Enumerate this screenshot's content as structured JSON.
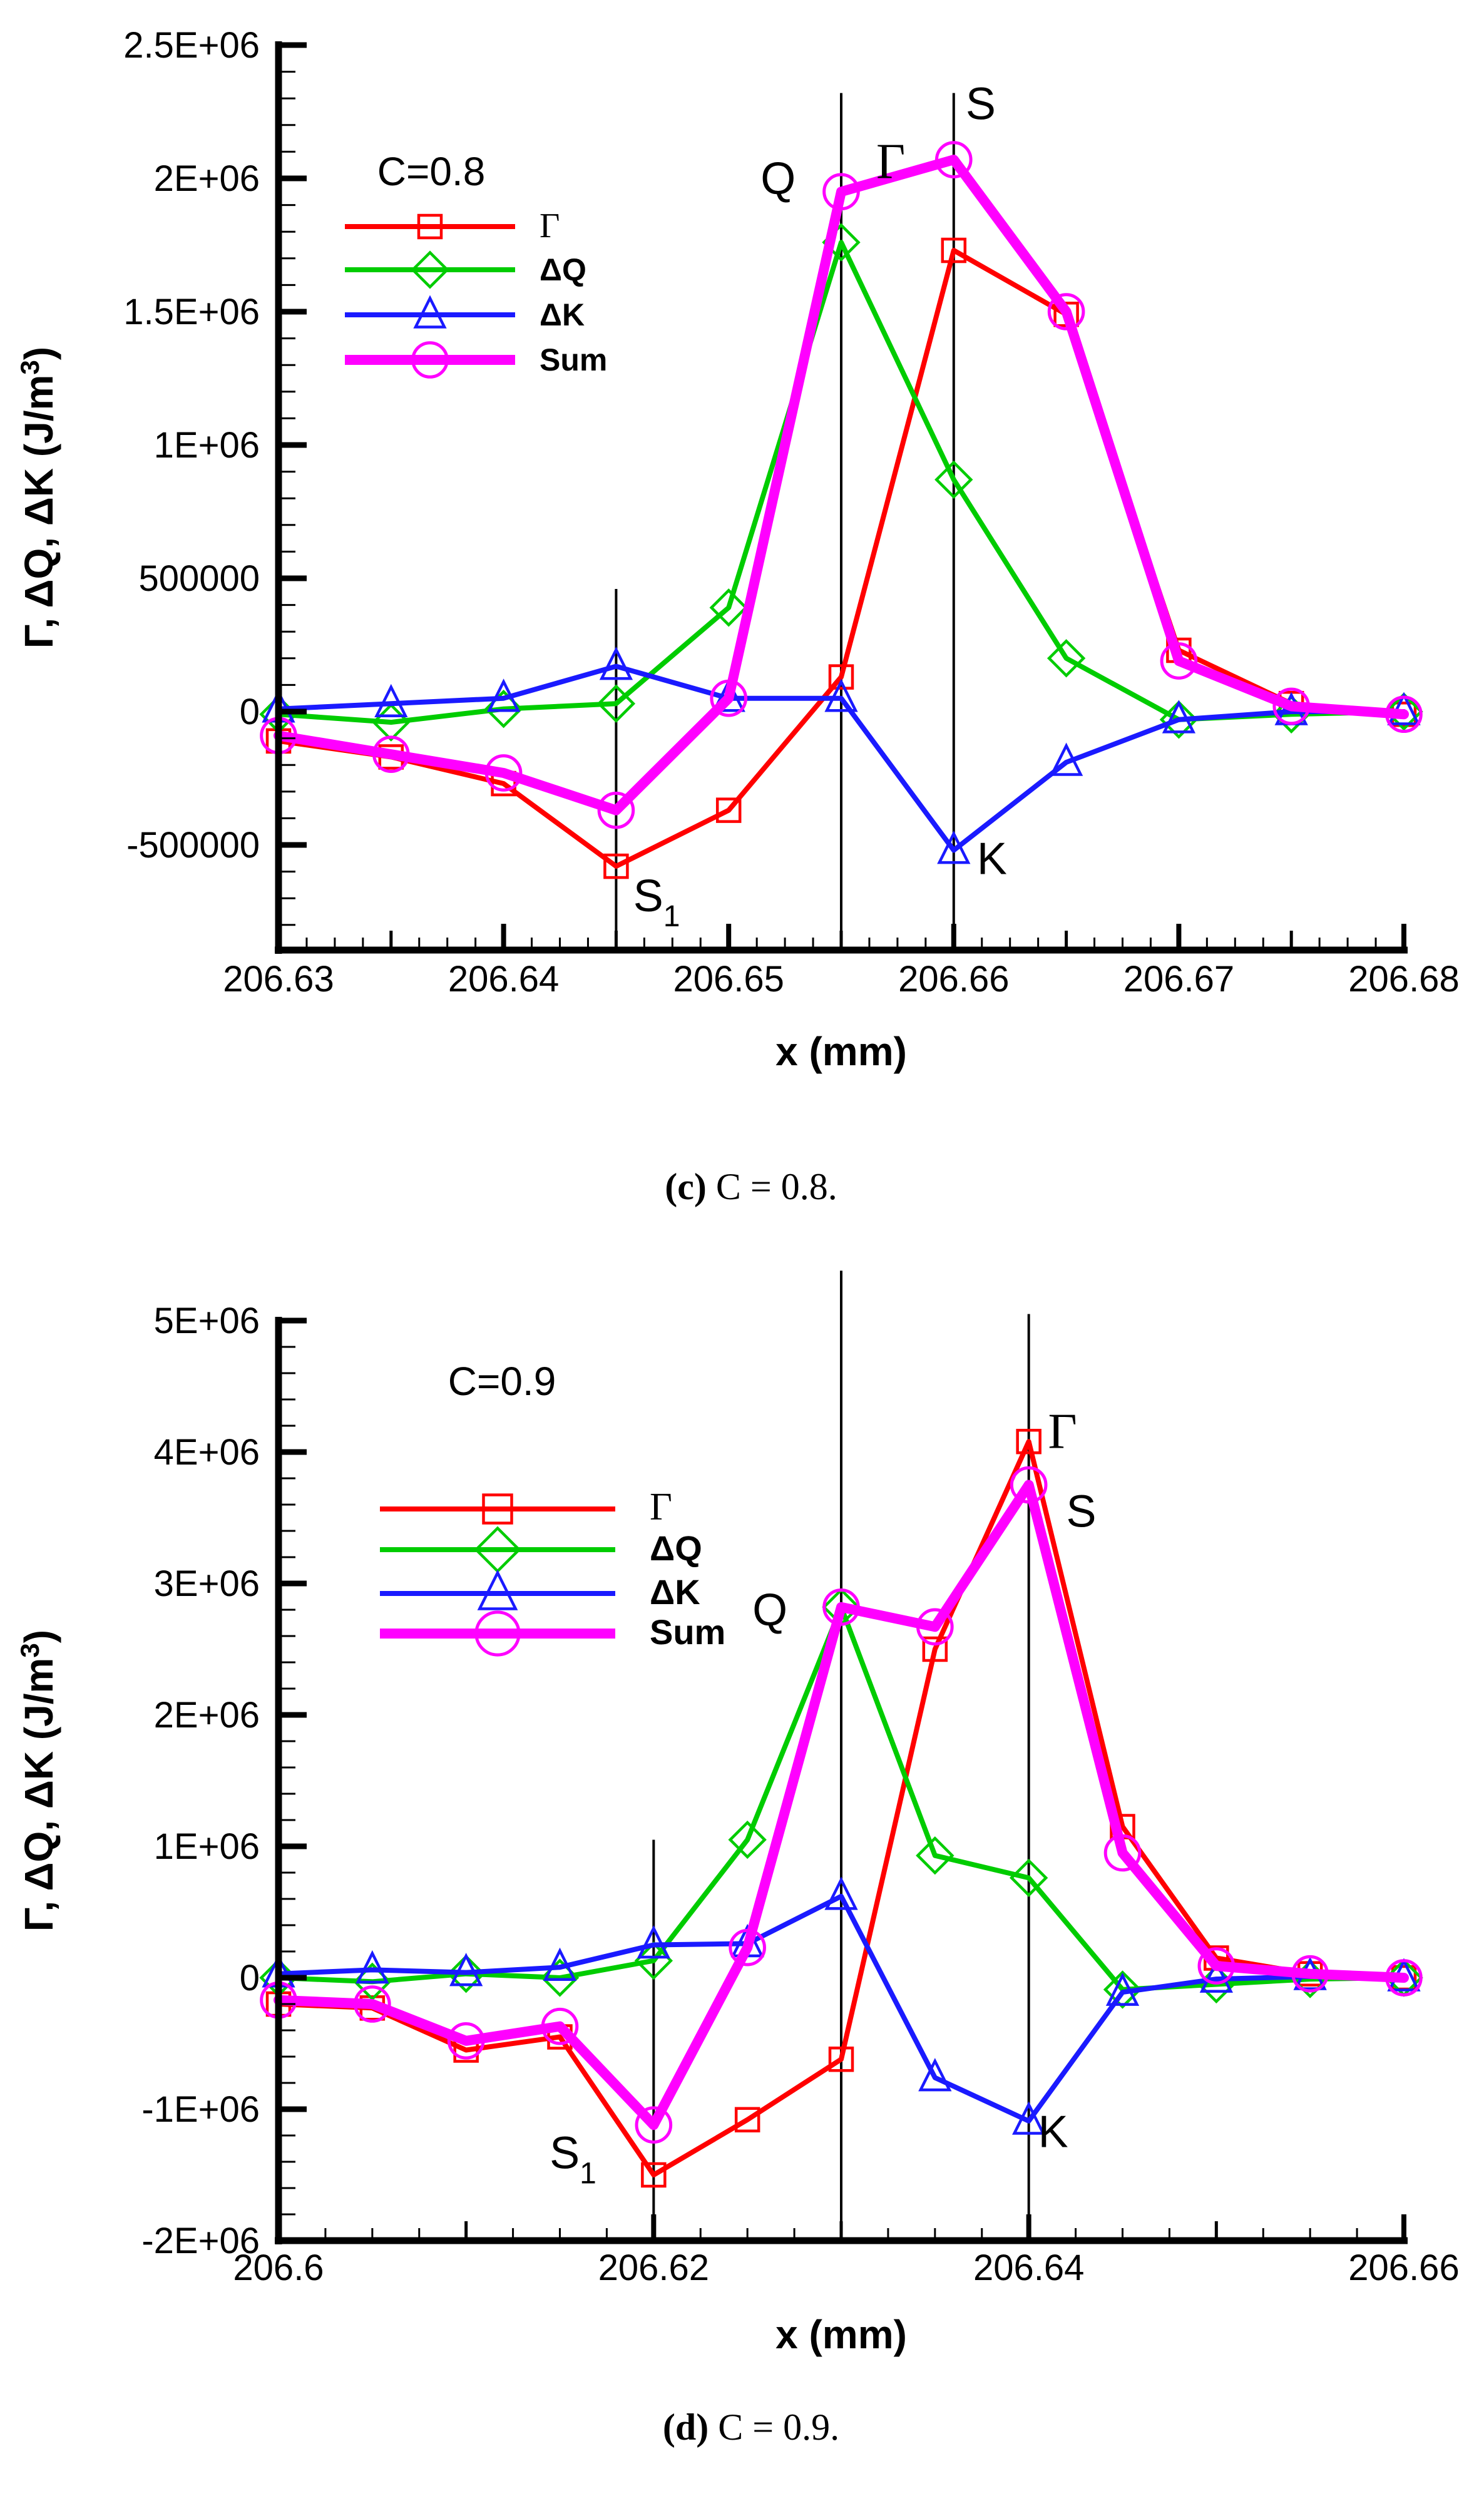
{
  "captions": {
    "c": {
      "bold": "(c)",
      "text": " C = 0.8."
    },
    "d": {
      "bold": "(d)",
      "text": " C = 0.9."
    }
  },
  "chart_data": [
    {
      "type": "line",
      "title": "C=0.8",
      "xlabel": "x (mm)",
      "ylabel_base": "Γ, ΔQ, ΔK (J/m",
      "ylabel_sup": "3",
      "ylabel_close": ")",
      "xlim": [
        206.63,
        206.68
      ],
      "ylim": [
        -895000,
        2500000
      ],
      "grid": false,
      "legend_position": "upper-left-inside",
      "x_ticks": {
        "minor_step": 0.00125,
        "medium_step": 0.005,
        "major_step": 0.01,
        "labels": [
          {
            "v": 206.63,
            "t": "206.63"
          },
          {
            "v": 206.64,
            "t": "206.64"
          },
          {
            "v": 206.65,
            "t": "206.65"
          },
          {
            "v": 206.66,
            "t": "206.66"
          },
          {
            "v": 206.67,
            "t": "206.67"
          },
          {
            "v": 206.68,
            "t": "206.68"
          }
        ]
      },
      "y_ticks": {
        "minor_step": 100000,
        "major_step": 500000,
        "labels": [
          {
            "v": 2500000,
            "t": "2.5E+06"
          },
          {
            "v": 2000000,
            "t": "2E+06"
          },
          {
            "v": 1500000,
            "t": "1.5E+06"
          },
          {
            "v": 1000000,
            "t": "1E+06"
          },
          {
            "v": 500000,
            "t": "500000"
          },
          {
            "v": 0,
            "t": "0"
          },
          {
            "v": -500000,
            "t": "-500000"
          }
        ]
      },
      "x": [
        206.63,
        206.635,
        206.64,
        206.645,
        206.65,
        206.655,
        206.66,
        206.665,
        206.67,
        206.675,
        206.68
      ],
      "series": [
        {
          "key": "gamma",
          "name": "Γ",
          "legend_font": "serif",
          "color": "#ff0000",
          "marker": "square",
          "line_width": 8,
          "marker_size": 20,
          "values": [
            -110000,
            -170000,
            -270000,
            -580000,
            -370000,
            130000,
            1730000,
            1490000,
            230000,
            30000,
            -10000
          ]
        },
        {
          "key": "delta-q",
          "name": "ΔQ",
          "legend_font": "sans",
          "color": "#00cc00",
          "marker": "diamond",
          "line_width": 8,
          "marker_size": 22,
          "values": [
            -10000,
            -40000,
            10000,
            30000,
            390000,
            1760000,
            870000,
            200000,
            -30000,
            -10000,
            0
          ]
        },
        {
          "key": "delta-k",
          "name": "ΔK",
          "legend_font": "sans",
          "color": "#1a1aff",
          "marker": "triangle",
          "line_width": 8,
          "marker_size": 23,
          "values": [
            10000,
            30000,
            50000,
            170000,
            50000,
            50000,
            -520000,
            -190000,
            -30000,
            0,
            0
          ]
        },
        {
          "key": "sum",
          "name": "Sum",
          "legend_font": "sans",
          "color": "#ff00ff",
          "marker": "circle",
          "line_width": 16,
          "marker_size": 26,
          "values": [
            -90000,
            -160000,
            -230000,
            -370000,
            50000,
            1950000,
            2070000,
            1500000,
            190000,
            20000,
            -10000
          ]
        }
      ],
      "vlines": [
        {
          "x": 206.645,
          "y_top": 460000
        },
        {
          "x": 206.655,
          "y_top": 2320000
        },
        {
          "x": 206.66,
          "y_top": 2320000
        }
      ],
      "annotations": [
        {
          "key": "q",
          "text": "Q",
          "x": 206.6522,
          "y": 2000000,
          "font": "sans"
        },
        {
          "key": "gamma",
          "text": "Γ",
          "x": 206.6572,
          "y": 2060000,
          "font": "serif"
        },
        {
          "key": "s",
          "text": "S",
          "x": 206.6612,
          "y": 2280000,
          "font": "sans"
        },
        {
          "key": "k",
          "text": "K",
          "x": 206.6617,
          "y": -550000,
          "font": "sans"
        },
        {
          "key": "s1",
          "text": "S",
          "sub": "1",
          "x": 206.6468,
          "y": -690000,
          "font": "sans"
        }
      ]
    },
    {
      "type": "line",
      "title": "C=0.9",
      "xlabel": "x (mm)",
      "ylabel_base": "Γ, ΔQ, ΔK (J/m",
      "ylabel_sup": "3",
      "ylabel_close": ")",
      "xlim": [
        206.6,
        206.66
      ],
      "ylim": [
        -2000000,
        5000000
      ],
      "grid": false,
      "legend_position": "upper-left-inside",
      "x_ticks": {
        "minor_step": 0.0025,
        "medium_step": 0.01,
        "major_step": 0.02,
        "labels": [
          {
            "v": 206.6,
            "t": "206.6"
          },
          {
            "v": 206.62,
            "t": "206.62"
          },
          {
            "v": 206.64,
            "t": "206.64"
          },
          {
            "v": 206.66,
            "t": "206.66"
          }
        ]
      },
      "y_ticks": {
        "minor_step": 200000,
        "major_step": 1000000,
        "labels": [
          {
            "v": 5000000,
            "t": "5E+06"
          },
          {
            "v": 4000000,
            "t": "4E+06"
          },
          {
            "v": 3000000,
            "t": "3E+06"
          },
          {
            "v": 2000000,
            "t": "2E+06"
          },
          {
            "v": 1000000,
            "t": "1E+06"
          },
          {
            "v": 0,
            "t": "0"
          },
          {
            "v": -1000000,
            "t": "-1E+06"
          },
          {
            "v": -2000000,
            "t": "-2E+06"
          }
        ]
      },
      "x": [
        206.6,
        206.605,
        206.61,
        206.615,
        206.62,
        206.625,
        206.63,
        206.635,
        206.64,
        206.645,
        206.65,
        206.655,
        206.66
      ],
      "series": [
        {
          "key": "gamma",
          "name": "Γ",
          "legend_font": "serif",
          "color": "#ff0000",
          "marker": "square",
          "line_width": 8,
          "marker_size": 20,
          "values": [
            -200000,
            -230000,
            -550000,
            -450000,
            -1500000,
            -1080000,
            -620000,
            2500000,
            4080000,
            1150000,
            150000,
            30000,
            0
          ]
        },
        {
          "key": "delta-q",
          "name": "ΔQ",
          "legend_font": "sans",
          "color": "#00cc00",
          "marker": "diamond",
          "line_width": 8,
          "marker_size": 22,
          "values": [
            0,
            -30000,
            30000,
            0,
            130000,
            1050000,
            2820000,
            930000,
            760000,
            -90000,
            -50000,
            -10000,
            0
          ]
        },
        {
          "key": "delta-k",
          "name": "ΔK",
          "legend_font": "sans",
          "color": "#1a1aff",
          "marker": "triangle",
          "line_width": 8,
          "marker_size": 23,
          "values": [
            30000,
            60000,
            40000,
            80000,
            250000,
            260000,
            620000,
            -760000,
            -1090000,
            -110000,
            -10000,
            10000,
            0
          ]
        },
        {
          "key": "sum",
          "name": "Sum",
          "legend_font": "sans",
          "color": "#ff00ff",
          "marker": "circle",
          "line_width": 16,
          "marker_size": 26,
          "values": [
            -170000,
            -200000,
            -480000,
            -370000,
            -1120000,
            230000,
            2820000,
            2670000,
            3750000,
            950000,
            90000,
            30000,
            0
          ]
        }
      ],
      "vlines": [
        {
          "x": 206.62,
          "y_top": 1050000
        },
        {
          "x": 206.63,
          "y_top": 5380000
        },
        {
          "x": 206.64,
          "y_top": 5050000
        }
      ],
      "annotations": [
        {
          "key": "q",
          "text": "Q",
          "x": 206.6262,
          "y": 2800000,
          "font": "sans"
        },
        {
          "key": "gamma",
          "text": "Γ",
          "x": 206.6418,
          "y": 4150000,
          "font": "serif"
        },
        {
          "key": "s",
          "text": "S",
          "x": 206.6428,
          "y": 3550000,
          "font": "sans"
        },
        {
          "key": "k",
          "text": "K",
          "x": 206.6413,
          "y": -1170000,
          "font": "sans"
        },
        {
          "key": "s1",
          "text": "S",
          "sub": "1",
          "x": 206.6157,
          "y": -1330000,
          "font": "sans"
        }
      ]
    }
  ]
}
